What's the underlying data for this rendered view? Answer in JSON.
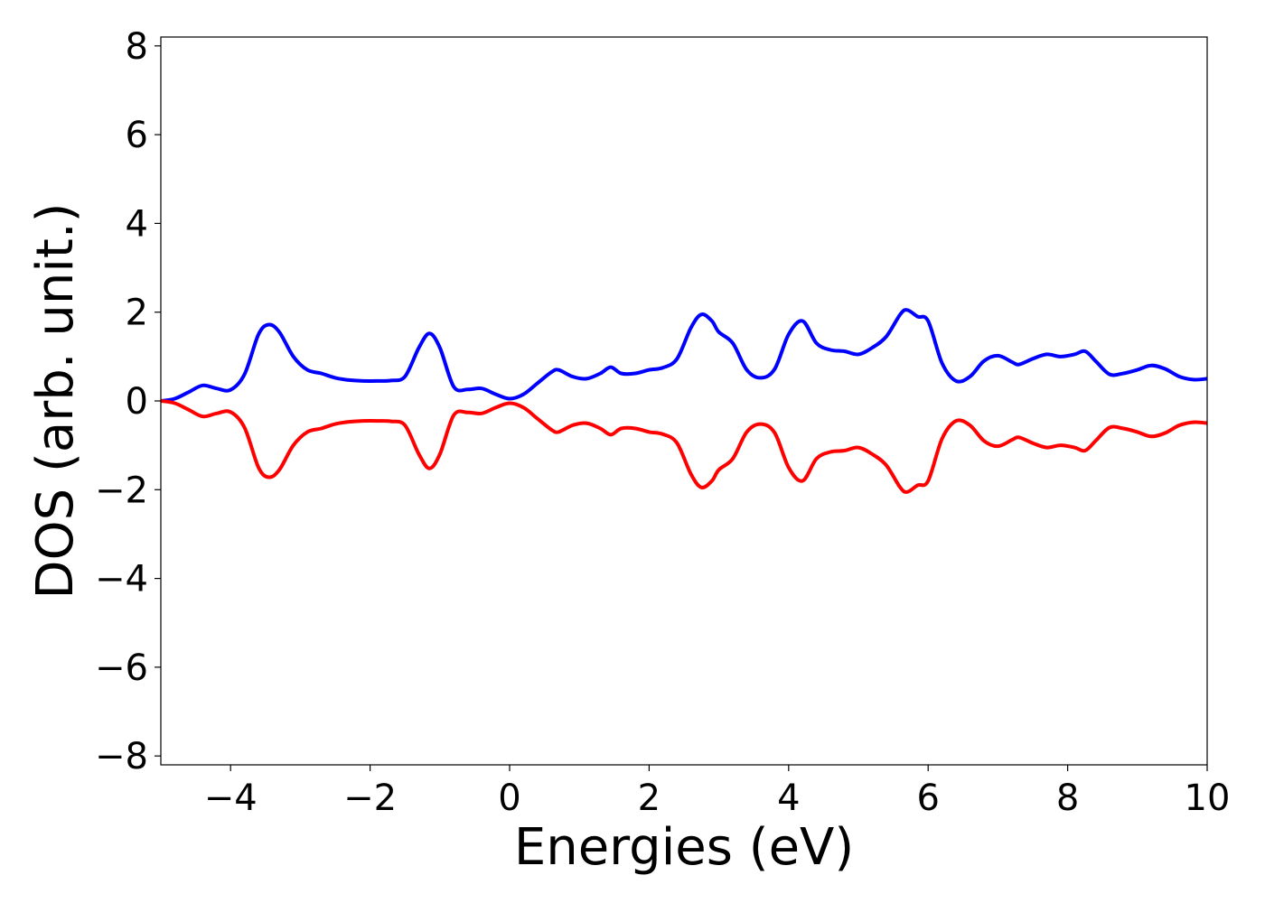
{
  "chart_data": {
    "type": "line",
    "xlabel": "Energies (eV)",
    "ylabel": "DOS (arb. unit.)",
    "xlim": [
      -5,
      10
    ],
    "ylim": [
      -8.2,
      8.2
    ],
    "xticks": [
      -4,
      -2,
      0,
      2,
      4,
      6,
      8,
      10
    ],
    "xtick_labels": [
      "−4",
      "−2",
      "0",
      "2",
      "4",
      "6",
      "8",
      "10"
    ],
    "yticks": [
      -8,
      -6,
      -4,
      -2,
      0,
      2,
      4,
      6,
      8
    ],
    "ytick_labels": [
      "−8",
      "−6",
      "−4",
      "−2",
      "0",
      "2",
      "4",
      "6",
      "8"
    ],
    "grid": false,
    "series": [
      {
        "color": "#0000ff",
        "x": [
          -5.0,
          -4.8,
          -4.6,
          -4.4,
          -4.2,
          -4.0,
          -3.8,
          -3.6,
          -3.45,
          -3.3,
          -3.1,
          -2.9,
          -2.7,
          -2.5,
          -2.3,
          -2.1,
          -1.9,
          -1.7,
          -1.5,
          -1.3,
          -1.15,
          -1.0,
          -0.8,
          -0.6,
          -0.4,
          -0.2,
          0.0,
          0.2,
          0.4,
          0.6,
          0.7,
          0.9,
          1.1,
          1.3,
          1.45,
          1.6,
          1.8,
          2.0,
          2.2,
          2.4,
          2.6,
          2.75,
          2.9,
          3.0,
          3.2,
          3.4,
          3.6,
          3.8,
          4.0,
          4.2,
          4.4,
          4.6,
          4.8,
          5.0,
          5.2,
          5.4,
          5.6,
          5.7,
          5.85,
          6.0,
          6.2,
          6.4,
          6.6,
          6.8,
          7.0,
          7.2,
          7.3,
          7.5,
          7.7,
          7.9,
          8.1,
          8.25,
          8.4,
          8.6,
          8.8,
          9.0,
          9.2,
          9.4,
          9.6,
          9.8,
          10.0
        ],
        "y": [
          0.0,
          0.05,
          0.2,
          0.35,
          0.28,
          0.25,
          0.6,
          1.5,
          1.72,
          1.55,
          1.0,
          0.7,
          0.62,
          0.52,
          0.47,
          0.45,
          0.45,
          0.46,
          0.55,
          1.2,
          1.52,
          1.2,
          0.32,
          0.26,
          0.28,
          0.15,
          0.05,
          0.15,
          0.4,
          0.65,
          0.7,
          0.55,
          0.5,
          0.62,
          0.76,
          0.62,
          0.62,
          0.7,
          0.75,
          0.95,
          1.65,
          1.95,
          1.8,
          1.55,
          1.3,
          0.7,
          0.52,
          0.72,
          1.5,
          1.8,
          1.3,
          1.15,
          1.12,
          1.05,
          1.2,
          1.45,
          1.95,
          2.05,
          1.9,
          1.8,
          0.85,
          0.45,
          0.55,
          0.9,
          1.02,
          0.88,
          0.82,
          0.95,
          1.05,
          1.0,
          1.05,
          1.12,
          0.9,
          0.6,
          0.62,
          0.7,
          0.8,
          0.72,
          0.55,
          0.48,
          0.5
        ]
      },
      {
        "color": "#ff0000",
        "x": [
          -5.0,
          -4.8,
          -4.6,
          -4.4,
          -4.2,
          -4.0,
          -3.8,
          -3.6,
          -3.45,
          -3.3,
          -3.1,
          -2.9,
          -2.7,
          -2.5,
          -2.3,
          -2.1,
          -1.9,
          -1.7,
          -1.5,
          -1.3,
          -1.15,
          -1.0,
          -0.8,
          -0.6,
          -0.4,
          -0.2,
          0.0,
          0.2,
          0.4,
          0.6,
          0.7,
          0.9,
          1.1,
          1.3,
          1.45,
          1.6,
          1.8,
          2.0,
          2.2,
          2.4,
          2.6,
          2.75,
          2.9,
          3.0,
          3.2,
          3.4,
          3.6,
          3.8,
          4.0,
          4.2,
          4.4,
          4.6,
          4.8,
          5.0,
          5.2,
          5.4,
          5.6,
          5.7,
          5.85,
          6.0,
          6.2,
          6.4,
          6.6,
          6.8,
          7.0,
          7.2,
          7.3,
          7.5,
          7.7,
          7.9,
          8.1,
          8.25,
          8.4,
          8.6,
          8.8,
          9.0,
          9.2,
          9.4,
          9.6,
          9.8,
          10.0
        ],
        "y": [
          0.0,
          -0.05,
          -0.2,
          -0.35,
          -0.28,
          -0.25,
          -0.6,
          -1.5,
          -1.72,
          -1.55,
          -1.0,
          -0.7,
          -0.62,
          -0.52,
          -0.47,
          -0.45,
          -0.45,
          -0.46,
          -0.55,
          -1.2,
          -1.52,
          -1.2,
          -0.32,
          -0.26,
          -0.28,
          -0.15,
          -0.05,
          -0.15,
          -0.4,
          -0.65,
          -0.7,
          -0.55,
          -0.5,
          -0.62,
          -0.76,
          -0.62,
          -0.62,
          -0.7,
          -0.75,
          -0.95,
          -1.65,
          -1.95,
          -1.8,
          -1.55,
          -1.3,
          -0.7,
          -0.52,
          -0.72,
          -1.5,
          -1.8,
          -1.3,
          -1.15,
          -1.12,
          -1.05,
          -1.2,
          -1.45,
          -1.95,
          -2.05,
          -1.9,
          -1.8,
          -0.85,
          -0.45,
          -0.55,
          -0.9,
          -1.02,
          -0.88,
          -0.82,
          -0.95,
          -1.05,
          -1.0,
          -1.05,
          -1.12,
          -0.9,
          -0.6,
          -0.62,
          -0.7,
          -0.8,
          -0.72,
          -0.55,
          -0.48,
          -0.5
        ]
      }
    ]
  }
}
